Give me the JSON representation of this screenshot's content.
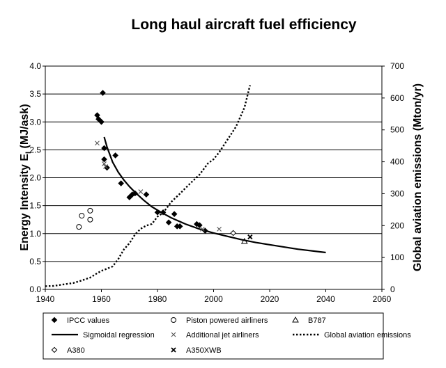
{
  "chart_data": {
    "type": "scatter",
    "title": "Long haul aircraft fuel efficiency",
    "xlabel": "",
    "ylabel_left": "Energy Intensity E_I (MJ/ask)",
    "ylabel_left_main": "Energy Intensity E",
    "ylabel_left_sub": "I",
    "ylabel_left_unit": " (MJ/ask)",
    "ylabel_right": "Global aviation emissions (Mton/yr)",
    "xlim": [
      1940,
      2060
    ],
    "ylim_left": [
      0,
      4.0
    ],
    "ylim_right": [
      0,
      700
    ],
    "x_ticks": [
      "1940",
      "1960",
      "1980",
      "2000",
      "2020",
      "2040",
      "2060"
    ],
    "y_left_ticks": [
      "0.0",
      "0.5",
      "1.0",
      "1.5",
      "2.0",
      "2.5",
      "3.0",
      "3.5",
      "4.0"
    ],
    "y_right_ticks": [
      "0",
      "100",
      "200",
      "300",
      "400",
      "500",
      "600",
      "700"
    ],
    "grid": "horizontal",
    "legend_position": "bottom",
    "series": [
      {
        "name": "IPCC values",
        "marker": "diamond-filled",
        "axis": "left",
        "points": [
          [
            1958.5,
            3.12
          ],
          [
            1959,
            3.05
          ],
          [
            1960,
            3.0
          ],
          [
            1960.5,
            3.52
          ],
          [
            1961,
            2.53
          ],
          [
            1961,
            2.33
          ],
          [
            1962,
            2.18
          ],
          [
            1965,
            2.4
          ],
          [
            1967,
            1.9
          ],
          [
            1970,
            1.65
          ],
          [
            1971,
            1.7
          ],
          [
            1972,
            1.72
          ],
          [
            1976,
            1.7
          ],
          [
            1980,
            1.38
          ],
          [
            1982,
            1.38
          ],
          [
            1984,
            1.2
          ],
          [
            1986,
            1.35
          ],
          [
            1987,
            1.13
          ],
          [
            1988,
            1.13
          ],
          [
            1994,
            1.17
          ],
          [
            1995,
            1.15
          ],
          [
            1997,
            1.05
          ]
        ]
      },
      {
        "name": "Piston powered airliners",
        "marker": "circle-open",
        "axis": "left",
        "points": [
          [
            1952,
            1.12
          ],
          [
            1953,
            1.32
          ],
          [
            1956,
            1.41
          ],
          [
            1956,
            1.25
          ]
        ]
      },
      {
        "name": "B787",
        "marker": "triangle-open",
        "axis": "left",
        "points": [
          [
            2011,
            0.86
          ]
        ]
      },
      {
        "name": "Sigmoidal regression",
        "line": "solid",
        "axis": "left",
        "x": [
          1961,
          1962,
          1964,
          1966,
          1968,
          1970,
          1972,
          1975,
          1978,
          1981,
          1985,
          1990,
          1995,
          2000,
          2005,
          2010,
          2015,
          2020,
          2030,
          2040
        ],
        "y": [
          2.73,
          2.55,
          2.28,
          2.1,
          1.96,
          1.84,
          1.74,
          1.6,
          1.48,
          1.39,
          1.28,
          1.17,
          1.08,
          1.01,
          0.95,
          0.89,
          0.84,
          0.8,
          0.72,
          0.66
        ]
      },
      {
        "name": "Additional jet airliners",
        "marker": "x",
        "axis": "left",
        "points": [
          [
            1958.5,
            2.62
          ],
          [
            1961,
            2.25
          ],
          [
            1961.5,
            2.2
          ],
          [
            1974,
            1.75
          ],
          [
            1996,
            1.08
          ],
          [
            2002,
            1.08
          ]
        ]
      },
      {
        "name": "Global aviation emissions",
        "line": "dotted",
        "axis": "right",
        "x": [
          1940,
          1943,
          1946,
          1950,
          1953,
          1956,
          1958,
          1960,
          1962,
          1964,
          1966,
          1968,
          1970,
          1972,
          1974,
          1976,
          1978,
          1980,
          1982,
          1985,
          1988,
          1990,
          1992,
          1995,
          1998,
          2000,
          2002,
          2005,
          2008,
          2011,
          2013
        ],
        "y": [
          10,
          11,
          15,
          20,
          28,
          37,
          48,
          58,
          65,
          72,
          95,
          125,
          145,
          172,
          190,
          200,
          205,
          228,
          240,
          275,
          300,
          318,
          335,
          360,
          395,
          408,
          430,
          470,
          510,
          570,
          640
        ]
      },
      {
        "name": "A380",
        "marker": "diamond-open",
        "axis": "left",
        "points": [
          [
            2007,
            1.01
          ]
        ]
      },
      {
        "name": "A350XWB",
        "marker": "star-x",
        "axis": "left",
        "points": [
          [
            2013,
            0.94
          ]
        ]
      }
    ]
  }
}
